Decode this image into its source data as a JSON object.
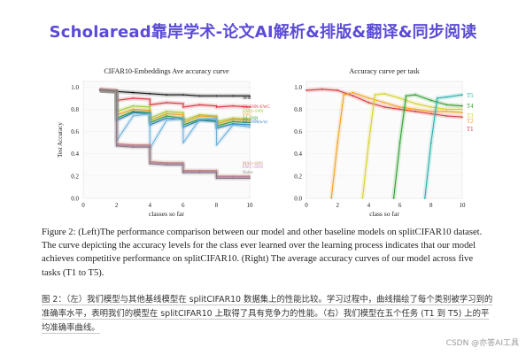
{
  "banner": {
    "title": "Scholaread靠岸学术-论文AI解析&排版&翻译&同步阅读"
  },
  "colors": {
    "banner": "#5b4bd6"
  },
  "chart_data": [
    {
      "type": "line",
      "title": "CIFAR10-Embeddings Ave accuracy curve",
      "xlabel": "classes so far",
      "ylabel": "Test Accuracy",
      "xlim": [
        0,
        10
      ],
      "ylim": [
        0,
        1.05
      ],
      "xticks": [
        "0",
        "2",
        "4",
        "6",
        "8",
        "10"
      ],
      "yticks": [
        "0.0",
        "0.2",
        "0.4",
        "0.6",
        "0.8",
        "1.0"
      ],
      "series": [
        {
          "name": "Joint",
          "color": "#111111",
          "x": [
            1,
            2,
            3,
            4,
            5,
            6,
            7,
            8,
            9,
            10
          ],
          "y": [
            0.97,
            0.96,
            0.95,
            0.94,
            0.93,
            0.93,
            0.92,
            0.92,
            0.92,
            0.92
          ]
        },
        {
          "name": "SA-SNN+EWC",
          "color": "#d6333b",
          "x": [
            1,
            2,
            2.01,
            3,
            4,
            4.01,
            5,
            6,
            6.01,
            7,
            8,
            8.01,
            9,
            10
          ],
          "y": [
            0.98,
            0.97,
            0.88,
            0.9,
            0.89,
            0.84,
            0.86,
            0.85,
            0.82,
            0.84,
            0.83,
            0.82,
            0.83,
            0.82
          ]
        },
        {
          "name": "HMN+SNN",
          "color": "#9acd32",
          "x": [
            1,
            2,
            2.01,
            3,
            4,
            4.01,
            5,
            6,
            6.01,
            7,
            8,
            8.01,
            9,
            10
          ],
          "y": [
            0.97,
            0.96,
            0.78,
            0.83,
            0.82,
            0.72,
            0.78,
            0.77,
            0.7,
            0.75,
            0.74,
            0.69,
            0.72,
            0.71
          ]
        },
        {
          "name": "EWC",
          "color": "#f0a020",
          "x": [
            1,
            2,
            2.01,
            3,
            4,
            4.01,
            5,
            6,
            6.01,
            7,
            8,
            8.01,
            9,
            10
          ],
          "y": [
            0.97,
            0.96,
            0.75,
            0.8,
            0.79,
            0.7,
            0.76,
            0.75,
            0.68,
            0.74,
            0.73,
            0.67,
            0.71,
            0.7
          ]
        },
        {
          "name": "SA-SNN",
          "color": "#2ca02c",
          "x": [
            1,
            2,
            2.01,
            3,
            4,
            4.01,
            5,
            6,
            6.01,
            7,
            8,
            8.01,
            9,
            10
          ],
          "y": [
            0.97,
            0.96,
            0.72,
            0.78,
            0.77,
            0.68,
            0.74,
            0.72,
            0.66,
            0.71,
            0.7,
            0.65,
            0.69,
            0.68
          ]
        },
        {
          "name": "SA-SNN(w/o)",
          "color": "#1f77b4",
          "x": [
            1,
            2,
            2.01,
            3,
            4,
            4.01,
            5,
            6,
            6.01,
            7,
            8,
            8.01,
            9,
            10
          ],
          "y": [
            0.97,
            0.96,
            0.7,
            0.77,
            0.76,
            0.66,
            0.72,
            0.71,
            0.64,
            0.7,
            0.69,
            0.63,
            0.67,
            0.66
          ]
        },
        {
          "name": "SI",
          "color": "#6ab0de",
          "x": [
            1,
            2,
            2.01,
            3,
            4,
            4.01,
            5,
            6,
            6.01,
            7,
            8,
            8.01,
            9,
            10
          ],
          "y": [
            0.97,
            0.96,
            0.52,
            0.74,
            0.76,
            0.45,
            0.7,
            0.72,
            0.5,
            0.71,
            0.72,
            0.48,
            0.66,
            0.64
          ]
        },
        {
          "name": "MAS+SNN",
          "color": "#c48a6a",
          "x": [
            1,
            2,
            2.01,
            3,
            4,
            4.01,
            5,
            6,
            6.01,
            7,
            8,
            8.01,
            9,
            10
          ],
          "y": [
            0.97,
            0.96,
            0.49,
            0.48,
            0.48,
            0.33,
            0.32,
            0.32,
            0.25,
            0.25,
            0.25,
            0.2,
            0.2,
            0.2
          ]
        },
        {
          "name": "EWC+SNN",
          "color": "#c77fb8",
          "x": [
            1,
            2,
            2.01,
            3,
            4,
            4.01,
            5,
            6,
            6.01,
            7,
            8,
            8.01,
            9,
            10
          ],
          "y": [
            0.97,
            0.96,
            0.48,
            0.47,
            0.47,
            0.32,
            0.31,
            0.31,
            0.24,
            0.24,
            0.24,
            0.19,
            0.19,
            0.19
          ]
        },
        {
          "name": "Naive",
          "color": "#7f7f7f",
          "x": [
            1,
            2,
            2.01,
            3,
            4,
            4.01,
            5,
            6,
            6.01,
            7,
            8,
            8.01,
            9,
            10
          ],
          "y": [
            0.97,
            0.96,
            0.47,
            0.46,
            0.46,
            0.31,
            0.3,
            0.3,
            0.23,
            0.23,
            0.23,
            0.18,
            0.18,
            0.18
          ]
        }
      ]
    },
    {
      "type": "line",
      "title": "Accuracy curve per task",
      "xlabel": "class so far",
      "xlim": [
        0,
        10
      ],
      "ylim": [
        0,
        1.05
      ],
      "xticks": [
        "0",
        "2",
        "4",
        "6",
        "8",
        "10"
      ],
      "yticks": [
        "0.0",
        "0.2",
        "0.4",
        "0.6",
        "0.8",
        "1.0"
      ],
      "series": [
        {
          "name": "T1",
          "color": "#d6333b",
          "x": [
            0,
            1,
            2,
            3,
            4,
            5,
            6,
            7,
            8,
            9,
            10
          ],
          "y": [
            0.97,
            0.98,
            0.97,
            0.92,
            0.86,
            0.82,
            0.8,
            0.78,
            0.76,
            0.74,
            0.73
          ]
        },
        {
          "name": "T2",
          "color": "#f0a020",
          "x": [
            1.6,
            2,
            2.4,
            3,
            4,
            5,
            6,
            7,
            8,
            9,
            10
          ],
          "y": [
            0,
            0.5,
            0.93,
            0.95,
            0.9,
            0.86,
            0.82,
            0.8,
            0.78,
            0.78,
            0.77
          ]
        },
        {
          "name": "T3",
          "color": "#d7d02c",
          "x": [
            3.6,
            4,
            4.4,
            5,
            6,
            7,
            8,
            9,
            10
          ],
          "y": [
            0,
            0.5,
            0.93,
            0.94,
            0.9,
            0.85,
            0.82,
            0.8,
            0.8
          ]
        },
        {
          "name": "T4",
          "color": "#2ca02c",
          "x": [
            5.6,
            6,
            6.4,
            7,
            8,
            9,
            10
          ],
          "y": [
            0,
            0.5,
            0.92,
            0.93,
            0.88,
            0.84,
            0.83
          ]
        },
        {
          "name": "T5",
          "color": "#20b2aa",
          "x": [
            7.6,
            8,
            8.4,
            9,
            10
          ],
          "y": [
            0,
            0.5,
            0.9,
            0.91,
            0.93
          ]
        }
      ]
    }
  ],
  "caption": {
    "en": "Figure 2: (Left)The performance comparison between our model and other baseline models on splitCIFAR10 dataset. The curve depicting the accuracy levels for the class ever learned over the learning process indicates that our model achieves competitive performance on splitCIFAR10. (Right) The average accuracy curves of our model across five tasks (T1 to T5).",
    "zh": "图 2：（左）我们模型与其他基线模型在 splitCIFAR10 数据集上的性能比较。学习过程中，曲线描绘了每个类别被学习到的准确率水平，表明我们的模型在 splitCIFAR10 上取得了具有竞争力的性能。（右）我们模型在五个任务 (T1 到 T5) 上的平均准确率曲线。"
  },
  "watermark": "CSDN @亦答AI工具"
}
